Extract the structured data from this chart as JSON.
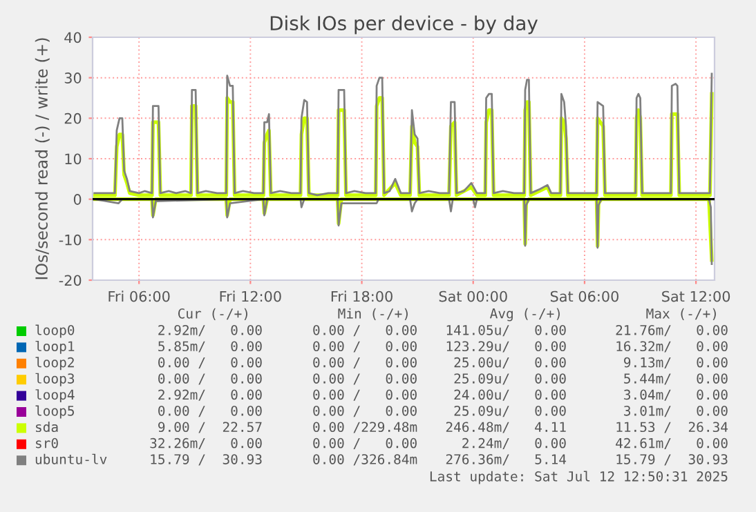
{
  "chart_data": {
    "type": "line",
    "title": "Disk IOs per device - by day",
    "ylabel": "IOs/second read (-) / write (+)",
    "xlim": [
      "2025-07-11T03:30",
      "2025-07-12T13:00"
    ],
    "xticks": [
      {
        "value": "2025-07-11T06:00",
        "label": "Fri 06:00"
      },
      {
        "value": "2025-07-11T12:00",
        "label": "Fri 12:00"
      },
      {
        "value": "2025-07-11T18:00",
        "label": "Fri 18:00"
      },
      {
        "value": "2025-07-12T00:00",
        "label": "Sat 00:00"
      },
      {
        "value": "2025-07-12T06:00",
        "label": "Sat 06:00"
      },
      {
        "value": "2025-07-12T12:00",
        "label": "Sat 12:00"
      }
    ],
    "ylim": [
      -20,
      40
    ],
    "yticks": [
      -20,
      -10,
      0,
      10,
      20,
      30,
      40
    ],
    "grid": true,
    "legend": "bottom",
    "ref_lines": [
      {
        "axis": "y",
        "value": 0,
        "color": "#000000"
      }
    ],
    "series": [
      {
        "name": "loop0",
        "color": "#00cc00"
      },
      {
        "name": "loop1",
        "color": "#0066b3"
      },
      {
        "name": "loop2",
        "color": "#ff8000"
      },
      {
        "name": "loop3",
        "color": "#ffcc00"
      },
      {
        "name": "loop4",
        "color": "#330099"
      },
      {
        "name": "loop5",
        "color": "#990099"
      },
      {
        "name": "sda",
        "color": "#ccff00",
        "x": [
          "2025-07-11T03:36",
          "2025-07-11T04:42",
          "2025-07-11T04:48",
          "2025-07-11T04:57",
          "2025-07-11T05:06",
          "2025-07-11T05:12",
          "2025-07-11T05:21",
          "2025-07-11T05:30",
          "2025-07-11T06:00",
          "2025-07-11T06:42",
          "2025-07-11T06:45",
          "2025-07-11T07:03",
          "2025-07-11T07:09",
          "2025-07-11T08:48",
          "2025-07-11T08:51",
          "2025-07-11T09:03",
          "2025-07-11T09:09",
          "2025-07-11T10:42",
          "2025-07-11T10:45",
          "2025-07-11T10:54",
          "2025-07-11T11:03",
          "2025-07-11T11:09",
          "2025-07-11T12:42",
          "2025-07-11T12:45",
          "2025-07-11T12:54",
          "2025-07-11T13:00",
          "2025-07-11T13:06",
          "2025-07-11T14:42",
          "2025-07-11T14:45",
          "2025-07-11T14:54",
          "2025-07-11T15:03",
          "2025-07-11T15:09",
          "2025-07-11T16:42",
          "2025-07-11T16:45",
          "2025-07-11T17:03",
          "2025-07-11T17:09",
          "2025-07-11T18:45",
          "2025-07-11T18:48",
          "2025-07-11T18:57",
          "2025-07-11T19:06",
          "2025-07-11T19:12",
          "2025-07-11T19:48",
          "2025-07-11T20:06",
          "2025-07-11T20:36",
          "2025-07-11T20:42",
          "2025-07-11T20:51",
          "2025-07-11T21:00",
          "2025-07-11T21:06",
          "2025-07-11T22:42",
          "2025-07-11T22:48",
          "2025-07-11T23:00",
          "2025-07-11T23:06",
          "2025-07-11T23:54",
          "2025-07-12T00:12",
          "2025-07-12T00:39",
          "2025-07-12T00:42",
          "2025-07-12T00:51",
          "2025-07-12T01:00",
          "2025-07-12T01:06",
          "2025-07-12T02:45",
          "2025-07-12T02:48",
          "2025-07-12T02:54",
          "2025-07-12T03:00",
          "2025-07-12T03:06",
          "2025-07-12T04:00",
          "2025-07-12T04:12",
          "2025-07-12T04:42",
          "2025-07-12T04:45",
          "2025-07-12T04:54",
          "2025-07-12T05:00",
          "2025-07-12T05:06",
          "2025-07-12T06:39",
          "2025-07-12T06:42",
          "2025-07-12T07:00",
          "2025-07-12T07:06",
          "2025-07-12T08:45",
          "2025-07-12T08:48",
          "2025-07-12T08:54",
          "2025-07-12T09:00",
          "2025-07-12T09:06",
          "2025-07-12T10:39",
          "2025-07-12T10:42",
          "2025-07-12T10:54",
          "2025-07-12T11:00",
          "2025-07-12T11:06",
          "2025-07-12T12:45",
          "2025-07-12T12:51"
        ],
        "values": [
          1,
          1,
          13,
          16,
          16,
          6,
          4,
          1.5,
          1,
          1,
          19,
          19,
          1,
          1,
          23,
          23,
          1,
          1,
          25,
          24,
          24,
          1,
          1,
          14,
          16,
          17,
          1,
          1,
          16,
          20,
          20,
          1,
          1,
          22,
          22,
          1,
          1,
          23,
          25,
          25,
          1,
          4,
          1,
          1,
          18,
          14,
          13,
          1,
          1,
          18,
          19,
          1,
          3,
          1,
          1,
          19,
          22,
          22,
          1,
          1,
          22,
          24,
          24,
          1,
          3,
          1,
          1,
          20,
          19,
          15,
          1,
          1,
          20,
          18,
          1,
          1,
          20,
          22,
          20,
          1,
          1,
          21,
          21,
          21,
          1,
          1,
          26
        ]
      },
      {
        "color": "#ccff00",
        "x": [
          "2025-07-11T03:36",
          "2025-07-11T06:42",
          "2025-07-11T06:45",
          "2025-07-11T06:54",
          "2025-07-11T10:42",
          "2025-07-11T10:45",
          "2025-07-11T10:54",
          "2025-07-11T12:42",
          "2025-07-11T12:45",
          "2025-07-11T12:54",
          "2025-07-11T16:42",
          "2025-07-11T16:45",
          "2025-07-11T16:54",
          "2025-07-12T02:45",
          "2025-07-12T02:48",
          "2025-07-12T02:51",
          "2025-07-12T03:00",
          "2025-07-12T06:39",
          "2025-07-12T06:42",
          "2025-07-12T06:45",
          "2025-07-12T06:54",
          "2025-07-12T12:42",
          "2025-07-12T12:51"
        ],
        "values": [
          0,
          0,
          -4,
          0,
          0,
          -4,
          0,
          0,
          -3.5,
          0,
          0,
          -6,
          0,
          0,
          -11,
          -1,
          0,
          0,
          -11.5,
          -1,
          0,
          0,
          -15
        ]
      },
      {
        "name": "sr0",
        "color": "#ff0000"
      },
      {
        "name": "ubuntu-lv",
        "color": "#808080",
        "x": [
          "2025-07-11T03:36",
          "2025-07-11T04:42",
          "2025-07-11T04:48",
          "2025-07-11T04:57",
          "2025-07-11T05:06",
          "2025-07-11T05:12",
          "2025-07-11T05:21",
          "2025-07-11T05:30",
          "2025-07-11T06:00",
          "2025-07-11T06:18",
          "2025-07-11T06:42",
          "2025-07-11T06:45",
          "2025-07-11T07:03",
          "2025-07-11T07:09",
          "2025-07-11T07:36",
          "2025-07-11T08:00",
          "2025-07-11T08:30",
          "2025-07-11T08:48",
          "2025-07-11T08:51",
          "2025-07-11T09:03",
          "2025-07-11T09:09",
          "2025-07-11T09:36",
          "2025-07-11T10:12",
          "2025-07-11T10:42",
          "2025-07-11T10:45",
          "2025-07-11T10:54",
          "2025-07-11T11:03",
          "2025-07-11T11:09",
          "2025-07-11T11:36",
          "2025-07-11T12:12",
          "2025-07-11T12:42",
          "2025-07-11T12:45",
          "2025-07-11T12:54",
          "2025-07-11T13:00",
          "2025-07-11T13:06",
          "2025-07-11T13:36",
          "2025-07-11T14:12",
          "2025-07-11T14:42",
          "2025-07-11T14:45",
          "2025-07-11T14:54",
          "2025-07-11T15:03",
          "2025-07-11T15:09",
          "2025-07-11T15:36",
          "2025-07-11T16:12",
          "2025-07-11T16:42",
          "2025-07-11T16:45",
          "2025-07-11T17:03",
          "2025-07-11T17:09",
          "2025-07-11T17:36",
          "2025-07-11T18:12",
          "2025-07-11T18:45",
          "2025-07-11T18:48",
          "2025-07-11T18:57",
          "2025-07-11T19:06",
          "2025-07-11T19:12",
          "2025-07-11T19:30",
          "2025-07-11T19:48",
          "2025-07-11T20:06",
          "2025-07-11T20:36",
          "2025-07-11T20:42",
          "2025-07-11T20:51",
          "2025-07-11T21:00",
          "2025-07-11T21:06",
          "2025-07-11T21:36",
          "2025-07-11T22:12",
          "2025-07-11T22:42",
          "2025-07-11T22:48",
          "2025-07-11T23:00",
          "2025-07-11T23:06",
          "2025-07-11T23:30",
          "2025-07-11T23:54",
          "2025-07-12T00:12",
          "2025-07-12T00:39",
          "2025-07-12T00:42",
          "2025-07-12T00:51",
          "2025-07-12T01:00",
          "2025-07-12T01:06",
          "2025-07-12T01:36",
          "2025-07-12T02:12",
          "2025-07-12T02:45",
          "2025-07-12T02:48",
          "2025-07-12T02:54",
          "2025-07-12T03:00",
          "2025-07-12T03:06",
          "2025-07-12T03:36",
          "2025-07-12T04:00",
          "2025-07-12T04:12",
          "2025-07-12T04:42",
          "2025-07-12T04:45",
          "2025-07-12T04:54",
          "2025-07-12T05:00",
          "2025-07-12T05:06",
          "2025-07-12T05:36",
          "2025-07-12T06:12",
          "2025-07-12T06:39",
          "2025-07-12T06:42",
          "2025-07-12T07:00",
          "2025-07-12T07:06",
          "2025-07-12T07:36",
          "2025-07-12T08:12",
          "2025-07-12T08:45",
          "2025-07-12T08:48",
          "2025-07-12T08:54",
          "2025-07-12T09:00",
          "2025-07-12T09:06",
          "2025-07-12T09:36",
          "2025-07-12T10:12",
          "2025-07-12T10:39",
          "2025-07-12T10:42",
          "2025-07-12T10:54",
          "2025-07-12T11:00",
          "2025-07-12T11:06",
          "2025-07-12T11:36",
          "2025-07-12T12:12",
          "2025-07-12T12:45",
          "2025-07-12T12:51"
        ],
        "values": [
          1.5,
          1.5,
          17,
          20,
          20,
          7,
          5,
          2,
          1.5,
          2,
          1.5,
          23,
          23,
          1.5,
          2,
          1.5,
          2,
          1.5,
          27,
          27,
          1.5,
          2,
          1.5,
          1.5,
          30.5,
          28,
          28,
          1.5,
          2,
          1.5,
          1.5,
          19,
          19,
          21,
          1.5,
          2,
          1.5,
          1.5,
          20,
          24.5,
          24,
          1.5,
          1,
          1.5,
          1.5,
          27,
          27,
          1.5,
          2,
          1.5,
          1.5,
          28,
          30,
          30,
          1.5,
          2,
          5,
          1.5,
          1.5,
          22,
          16,
          15,
          1.5,
          2,
          1.5,
          1.5,
          24,
          24,
          1.5,
          2,
          4,
          1.5,
          1.5,
          25,
          26,
          26,
          1.5,
          2,
          1.5,
          1.5,
          27,
          29.5,
          29.5,
          1.5,
          2.5,
          3.5,
          1.5,
          1.5,
          26,
          24,
          18,
          1.5,
          1.5,
          1.5,
          1.5,
          24,
          23,
          1.5,
          1.5,
          1.5,
          1.5,
          25,
          26,
          25,
          1.5,
          1.5,
          1.5,
          1.5,
          28,
          28.5,
          28,
          1.5,
          1.5,
          1.5,
          1.5,
          31
        ]
      },
      {
        "color": "#808080",
        "x": [
          "2025-07-11T03:36",
          "2025-07-11T04:54",
          "2025-07-11T05:06",
          "2025-07-11T06:42",
          "2025-07-11T06:45",
          "2025-07-11T06:54",
          "2025-07-11T10:42",
          "2025-07-11T10:45",
          "2025-07-11T10:54",
          "2025-07-11T12:42",
          "2025-07-11T12:45",
          "2025-07-11T12:54",
          "2025-07-11T14:42",
          "2025-07-11T14:45",
          "2025-07-11T14:54",
          "2025-07-11T16:42",
          "2025-07-11T16:45",
          "2025-07-11T16:54",
          "2025-07-11T18:48",
          "2025-07-11T18:54",
          "2025-07-11T20:36",
          "2025-07-11T20:42",
          "2025-07-11T20:51",
          "2025-07-11T21:00",
          "2025-07-11T22:42",
          "2025-07-11T22:48",
          "2025-07-11T22:54",
          "2025-07-12T00:00",
          "2025-07-12T00:06",
          "2025-07-12T00:12",
          "2025-07-12T02:45",
          "2025-07-12T02:48",
          "2025-07-12T02:51",
          "2025-07-12T03:00",
          "2025-07-12T06:39",
          "2025-07-12T06:42",
          "2025-07-12T06:45",
          "2025-07-12T06:54",
          "2025-07-12T12:42",
          "2025-07-12T12:48",
          "2025-07-12T12:51"
        ],
        "values": [
          0,
          -1,
          0,
          0,
          -4.5,
          -0.5,
          0,
          -4.5,
          -1,
          0,
          -4,
          0,
          0,
          -2,
          0,
          0,
          -6.5,
          -1,
          -1,
          0,
          0,
          -3,
          -1,
          0,
          0,
          -3,
          0,
          0,
          -2,
          0,
          0,
          -11.5,
          -1.5,
          0,
          0,
          -12,
          -1.5,
          0,
          0,
          -2,
          -16
        ]
      }
    ],
    "annotations": [
      "Cur (-/+)",
      "Min (-/+)",
      "Avg (-/+)",
      "Max (-/+)",
      "2.92m/   0.00",
      "0.00 /   0.00",
      "141.05u/   0.00",
      "21.76m/   0.00",
      "5.85m/   0.00",
      "0.00 /   0.00",
      "123.29u/   0.00",
      "16.32m/   0.00",
      "0.00 /   0.00",
      "0.00 /   0.00",
      "25.00u/   0.00",
      "9.13m/   0.00",
      "0.00 /   0.00",
      "0.00 /   0.00",
      "25.09u/   0.00",
      "5.44m/   0.00",
      "2.92m/   0.00",
      "0.00 /   0.00",
      "24.00u/   0.00",
      "3.04m/   0.00",
      "0.00 /   0.00",
      "0.00 /   0.00",
      "25.09u/   0.00",
      "3.01m/   0.00",
      "9.00 /  22.57",
      "0.00 /229.48m",
      "246.48m/   4.11",
      "11.53 /  26.34",
      "32.26m/   0.00",
      "0.00 /   0.00",
      "2.24m/   0.00",
      "42.61m/   0.00",
      "15.79 /  30.93",
      "0.00 /326.84m",
      "276.36m/   5.14",
      "15.79 /  30.93",
      "Last update: Sat Jul 12 12:50:31 2025"
    ]
  }
}
